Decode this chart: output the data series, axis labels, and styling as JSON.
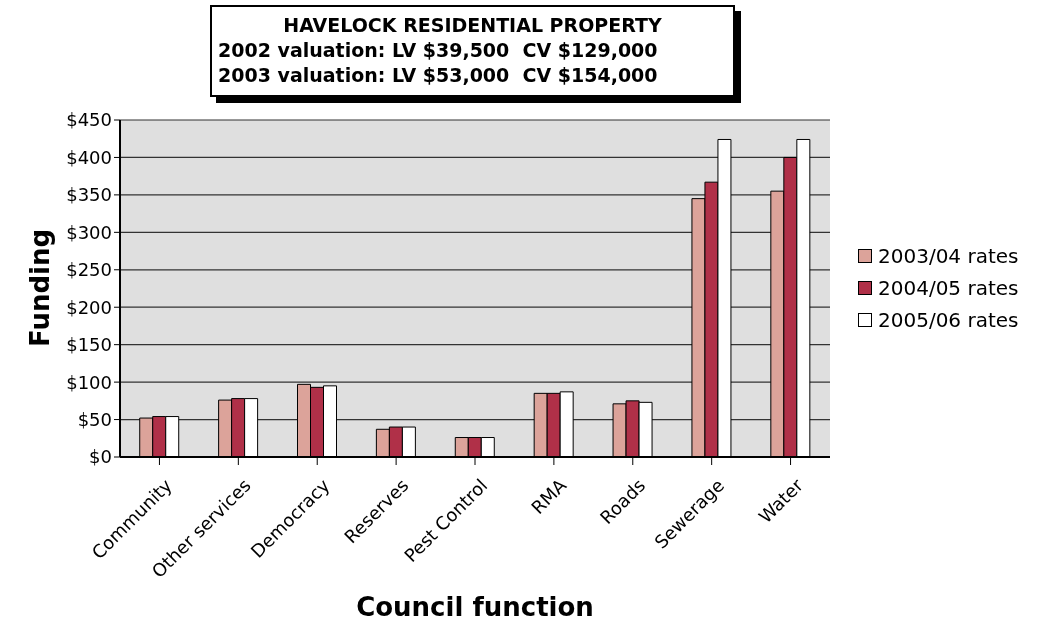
{
  "chart_data": {
    "type": "bar",
    "title": "HAVELOCK RESIDENTIAL PROPERTY",
    "subtitle": "2002 valuation: LV $39,500  CV $129,000\n2003 valuation: LV $53,000  CV $154,000",
    "xlabel": "Council function",
    "ylabel": "Funding",
    "categories": [
      "Community",
      "Other services",
      "Democracy",
      "Reserves",
      "Pest Control",
      "RMA",
      "Roads",
      "Sewerage",
      "Water"
    ],
    "series": [
      {
        "name": "2003/04 rates",
        "color": "#dca39a",
        "values": [
          52,
          76,
          97,
          37,
          26,
          85,
          71,
          345,
          355
        ]
      },
      {
        "name": "2004/05 rates",
        "color": "#b03048",
        "values": [
          54,
          78,
          93,
          40,
          26,
          85,
          75,
          367,
          400
        ]
      },
      {
        "name": "2005/06 rates",
        "color": "#ffffff",
        "values": [
          54,
          78,
          95,
          40,
          26,
          87,
          73,
          424,
          424
        ]
      }
    ],
    "ylim": [
      0,
      450
    ],
    "yticks": [
      {
        "value": 0,
        "label": "$0"
      },
      {
        "value": 50,
        "label": "$50"
      },
      {
        "value": 100,
        "label": "$100"
      },
      {
        "value": 150,
        "label": "$150"
      },
      {
        "value": 200,
        "label": "$200"
      },
      {
        "value": 250,
        "label": "$250"
      },
      {
        "value": 300,
        "label": "$300"
      },
      {
        "value": 350,
        "label": "$350"
      },
      {
        "value": 400,
        "label": "$400"
      },
      {
        "value": 450,
        "label": "$450"
      }
    ],
    "grid": "y",
    "legend": "right"
  }
}
